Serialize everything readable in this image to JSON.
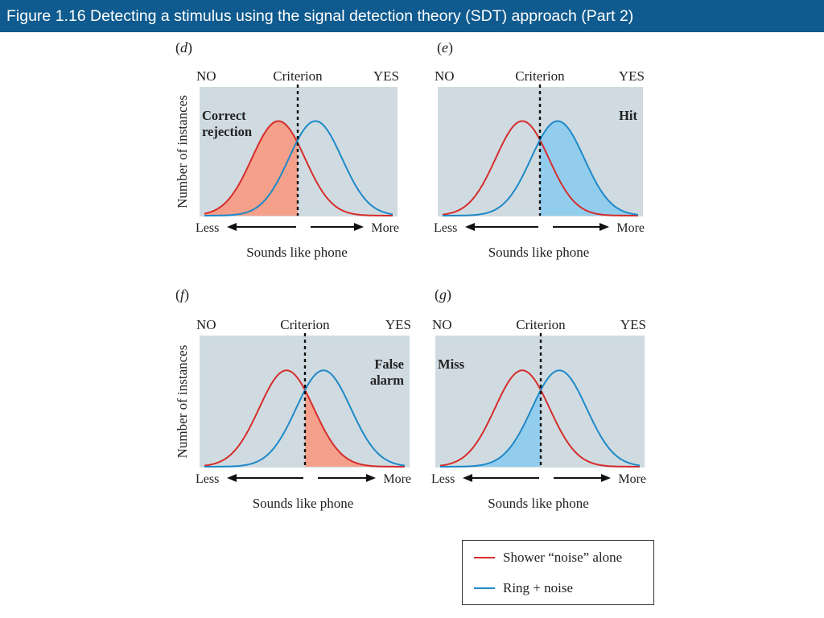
{
  "title": "Figure 1.16  Detecting a stimulus using the signal detection theory (SDT) approach (Part 2)",
  "colors": {
    "title_bg": "#0f5a8e",
    "plot_bg": "#cfdbe0",
    "noise": "#d62c2c",
    "signal": "#1e88c8",
    "noise_fill": "#f4a08a",
    "signal_fill": "#93cdee"
  },
  "common": {
    "no": "NO",
    "criterion": "Criterion",
    "yes": "YES",
    "less": "Less",
    "more": "More",
    "xlabel": "Sounds like phone",
    "ylabel": "Number of instances"
  },
  "panels": [
    {
      "letter": "d",
      "region": "Correct\nrejection",
      "shade": "noise-left",
      "label_side": "left"
    },
    {
      "letter": "e",
      "region": "Hit",
      "shade": "signal-right",
      "label_side": "right"
    },
    {
      "letter": "f",
      "region": "False\nalarm",
      "shade": "noise-right",
      "label_side": "right"
    },
    {
      "letter": "g",
      "region": "Miss",
      "shade": "signal-left",
      "label_side": "left"
    }
  ],
  "legend": {
    "noise": "Shower “noise” alone",
    "signal": "Ring + noise"
  }
}
